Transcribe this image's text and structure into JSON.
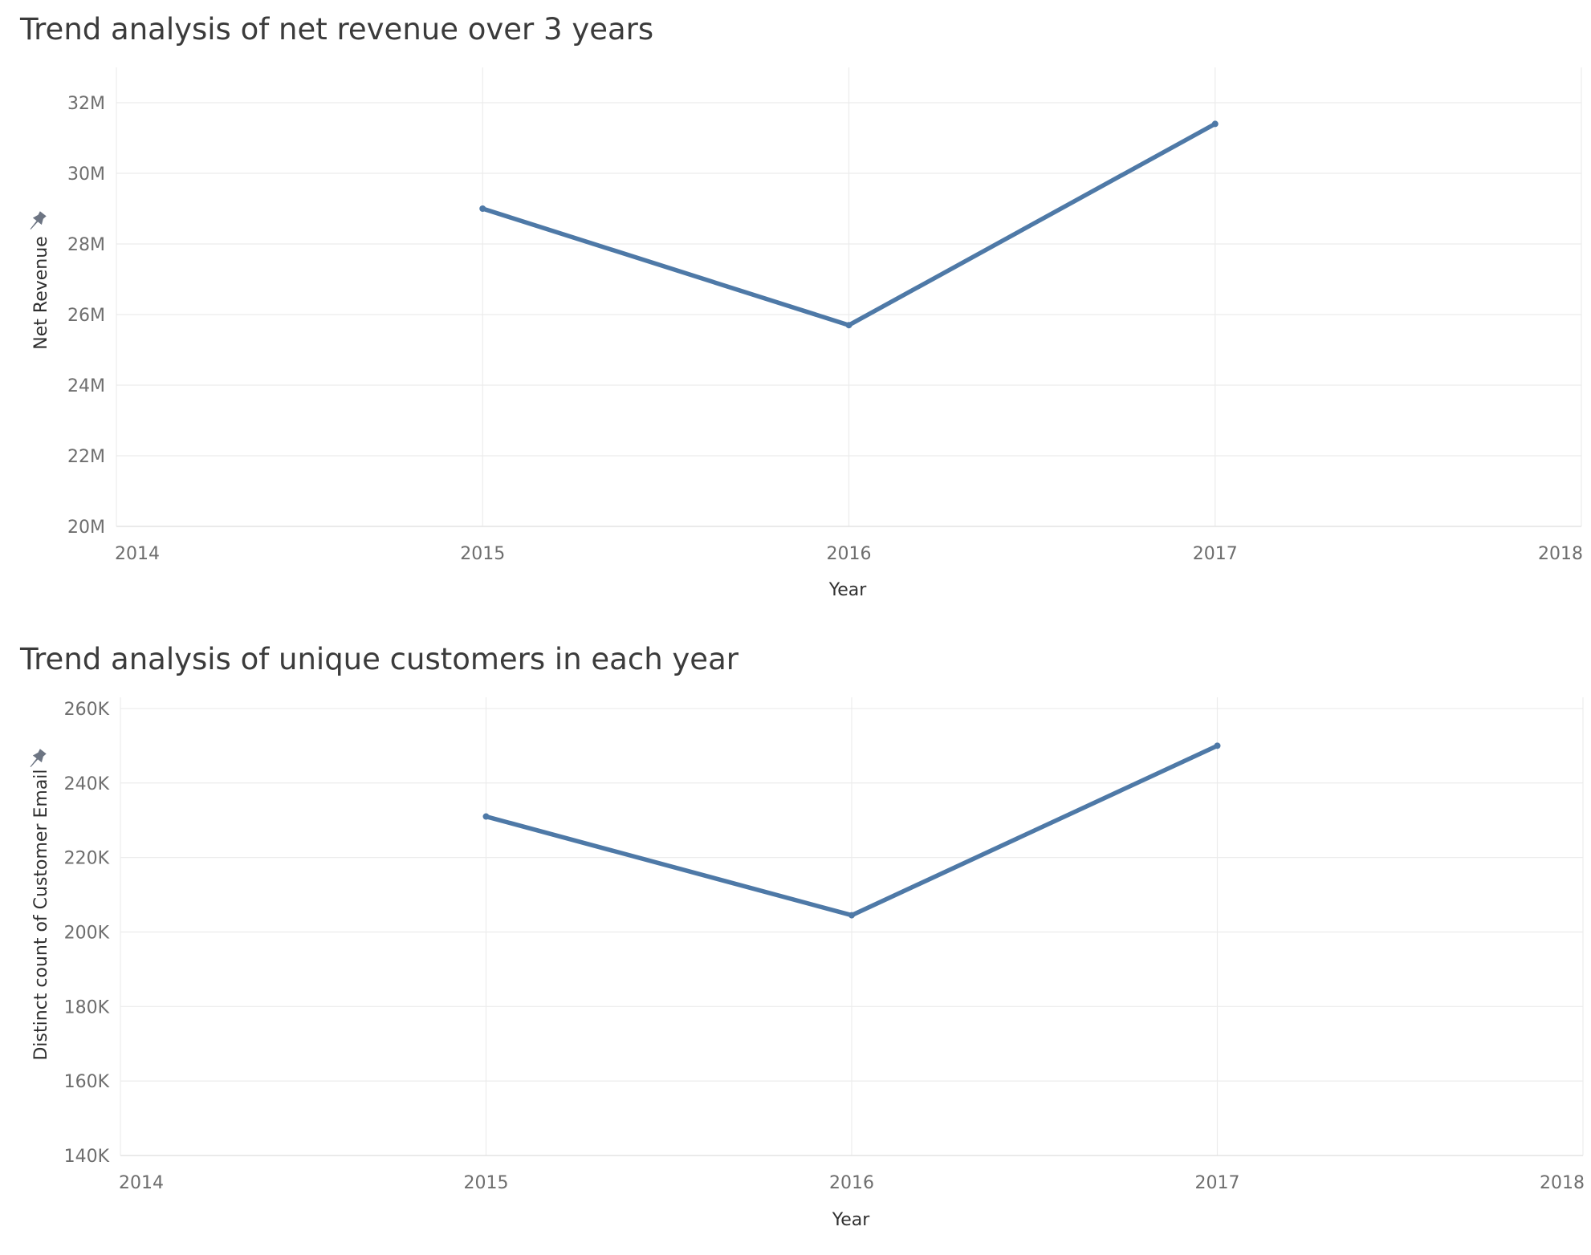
{
  "chart_data": [
    {
      "type": "line",
      "title": "Trend analysis of net revenue over 3 years",
      "xlabel": "Year",
      "ylabel": "Net Revenue",
      "x": [
        2015,
        2016,
        2017
      ],
      "series": [
        {
          "values": [
            29000000,
            25700000,
            31400000
          ],
          "color": "#4e79a7"
        }
      ],
      "xlim": [
        2014,
        2018
      ],
      "ylim": [
        20000000,
        33000000
      ],
      "xticks": [
        "2014",
        "2015",
        "2016",
        "2017",
        "2018"
      ],
      "yticks": [
        "20M",
        "22M",
        "24M",
        "26M",
        "28M",
        "30M",
        "32M"
      ],
      "ytick_values": [
        20000000,
        22000000,
        24000000,
        26000000,
        28000000,
        30000000,
        32000000
      ],
      "grid": true,
      "pinned_axis_icon": "pin-icon"
    },
    {
      "type": "line",
      "title": "Trend analysis of unique customers in each year",
      "xlabel": "Year",
      "ylabel": "Distinct count of Customer Email",
      "x": [
        2015,
        2016,
        2017
      ],
      "series": [
        {
          "values": [
            231000,
            204500,
            250000
          ],
          "color": "#4e79a7"
        }
      ],
      "xlim": [
        2014,
        2018
      ],
      "ylim": [
        140000,
        263000
      ],
      "xticks": [
        "2014",
        "2015",
        "2016",
        "2017",
        "2018"
      ],
      "yticks": [
        "140K",
        "160K",
        "180K",
        "200K",
        "220K",
        "240K",
        "260K"
      ],
      "ytick_values": [
        140000,
        160000,
        180000,
        200000,
        220000,
        240000,
        260000
      ],
      "grid": true,
      "pinned_axis_icon": "pin-icon"
    }
  ]
}
